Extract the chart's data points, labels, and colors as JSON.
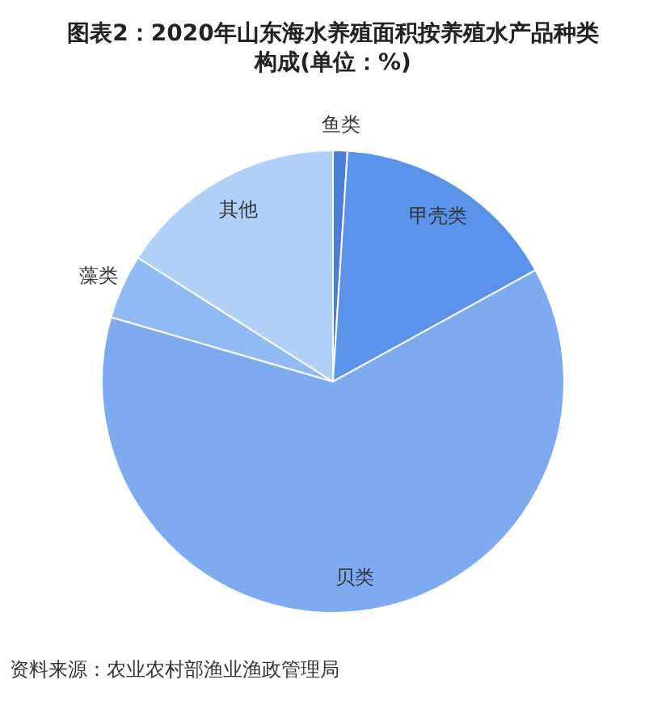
{
  "chart_data": {
    "type": "pie",
    "title": "图表2：2020年山东海水养殖面积按养殖水产品种类构成(单位：%)",
    "categories": [
      "鱼类",
      "甲壳类",
      "贝类",
      "藻类",
      "其他"
    ],
    "values": [
      1,
      16,
      62.5,
      4.5,
      16
    ],
    "colors": [
      "#4a7fd9",
      "#5b93ea",
      "#7eabf0",
      "#8fbaf3",
      "#b0d0f8"
    ],
    "legend": false,
    "annotations": [
      "资料来源：农业农村部渔业渔政管理局"
    ]
  }
}
